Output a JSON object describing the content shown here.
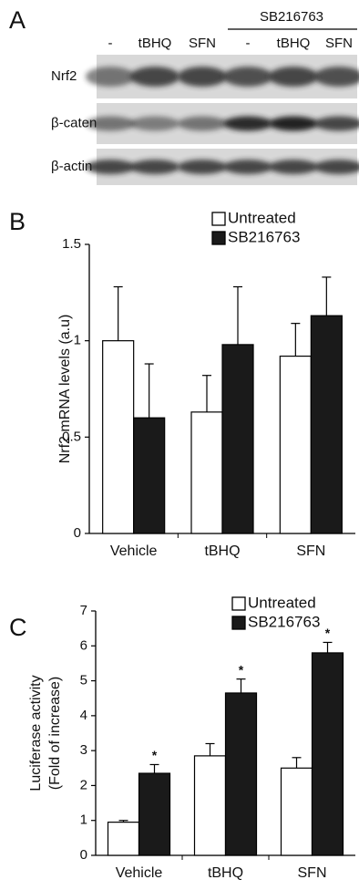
{
  "blot": {
    "panel_label": "A",
    "group_label": "SB216763",
    "lanes": [
      "-",
      "tBHQ",
      "SFN",
      "-",
      "tBHQ",
      "SFN"
    ],
    "rows": [
      "Nrf2",
      "β-catenin",
      "β-actin"
    ]
  },
  "chart_data": [
    {
      "type": "bar",
      "panel_label": "B",
      "y_label": "Nrf2 mRNA levels (a.u)",
      "categories": [
        "Vehicle",
        "tBHQ",
        "SFN"
      ],
      "series": [
        {
          "name": "Untreated",
          "color": "#ffffff",
          "values": [
            1.0,
            0.63,
            0.92
          ],
          "errors": [
            0.28,
            0.19,
            0.17
          ]
        },
        {
          "name": "SB216763",
          "color": "#1a1a1a",
          "values": [
            0.6,
            0.98,
            1.13
          ],
          "errors": [
            0.28,
            0.3,
            0.2
          ]
        }
      ],
      "ylim": [
        0,
        1.5
      ],
      "yticks": [
        0,
        0.5,
        1,
        1.5
      ],
      "legend": "top-right"
    },
    {
      "type": "bar",
      "panel_label": "C",
      "y_label": [
        "Luciferase activity",
        "(Fold of increase)"
      ],
      "categories": [
        "Vehicle",
        "tBHQ",
        "SFN"
      ],
      "series": [
        {
          "name": "Untreated",
          "color": "#ffffff",
          "values": [
            0.95,
            2.85,
            2.5
          ],
          "errors": [
            0.05,
            0.35,
            0.3
          ]
        },
        {
          "name": "SB216763",
          "color": "#1a1a1a",
          "values": [
            2.35,
            4.65,
            5.8
          ],
          "errors": [
            0.25,
            0.4,
            0.3
          ],
          "labels": [
            "*",
            "*",
            "*"
          ]
        }
      ],
      "ylim": [
        0,
        7
      ],
      "yticks": [
        0,
        1,
        2,
        3,
        4,
        5,
        6,
        7
      ],
      "legend": "top-right"
    }
  ]
}
